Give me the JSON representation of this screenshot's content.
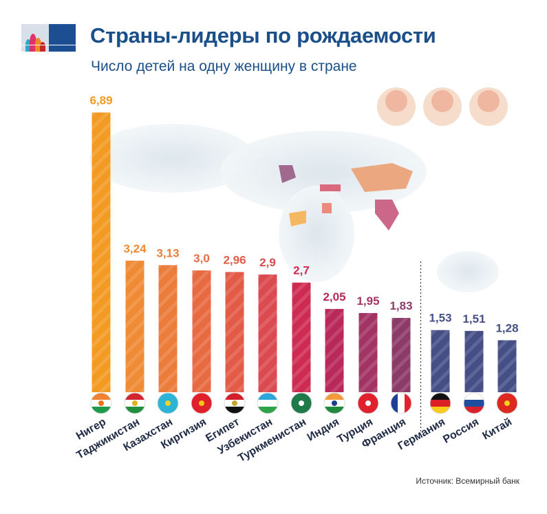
{
  "header": {
    "title": "Страны-лидеры по рождаемости",
    "subtitle": "Число детей на одну женщину в стране"
  },
  "source": "Источник: Всемирный банк",
  "chart_data": {
    "type": "bar",
    "title": "Страны-лидеры по рождаемости",
    "subtitle": "Число детей на одну женщину в стране",
    "categories": [
      "Нигер",
      "Таджикистан",
      "Казахстан",
      "Киргизия",
      "Египет",
      "Узбекистан",
      "Туркменистан",
      "Индия",
      "Турция",
      "Франция",
      "Германия",
      "Россия",
      "Китай"
    ],
    "values": [
      6.89,
      3.24,
      3.13,
      3.0,
      2.96,
      2.9,
      2.7,
      2.05,
      1.95,
      1.83,
      1.53,
      1.51,
      1.28
    ],
    "value_labels": [
      "6,89",
      "3,24",
      "3,13",
      "3,0",
      "2,96",
      "2,9",
      "2,7",
      "2,05",
      "1,95",
      "1,83",
      "1,53",
      "1,51",
      "1,28"
    ],
    "colors": [
      "#f39a22",
      "#ef8b35",
      "#ec7c3a",
      "#e86a40",
      "#e35a47",
      "#db4a4e",
      "#cf2b52",
      "#b8285a",
      "#a23463",
      "#8c3a68",
      "#454f86",
      "#454f86",
      "#454f86"
    ],
    "flags": [
      "niger",
      "tajikistan",
      "kazakhstan",
      "kyrgyzstan",
      "egypt",
      "uzbekistan",
      "turkmenistan",
      "india",
      "turkey",
      "france",
      "germany",
      "russia",
      "china"
    ],
    "ylim": [
      0,
      7
    ],
    "grid": false,
    "separator_after_index": 9
  }
}
